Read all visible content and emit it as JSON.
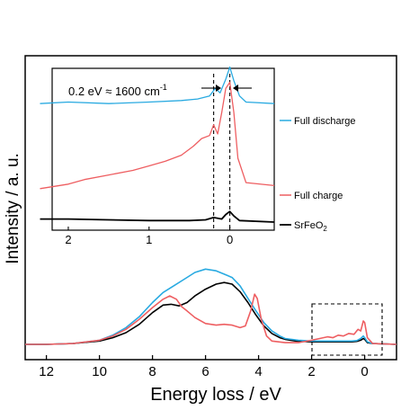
{
  "colors": {
    "full_discharge": "#29aae1",
    "full_charge": "#ee5e61",
    "srfeo2": "#000000",
    "frame": "#000000"
  },
  "chart_data": [
    {
      "type": "line",
      "panel": "main",
      "xlabel": "Energy loss / eV",
      "ylabel": "Intensity / a. u.",
      "xlim": [
        12.8,
        -1.2
      ],
      "x_reversed": true,
      "xticks": [
        12,
        10,
        8,
        6,
        4,
        2,
        0
      ],
      "xtick_labels": [
        "12",
        "10",
        "8",
        "6",
        "4",
        "2",
        "0"
      ],
      "y_ticks_shown": false,
      "grid": false,
      "series": [
        {
          "color_key": "srfeo2",
          "points": [
            [
              12.8,
              0.0
            ],
            [
              12,
              0.0
            ],
            [
              11,
              0.01
            ],
            [
              10,
              0.04
            ],
            [
              9.5,
              0.08
            ],
            [
              9,
              0.14
            ],
            [
              8.5,
              0.24
            ],
            [
              8,
              0.38
            ],
            [
              7.6,
              0.47
            ],
            [
              7.3,
              0.48
            ],
            [
              7,
              0.46
            ],
            [
              6.7,
              0.5
            ],
            [
              6.4,
              0.58
            ],
            [
              6.0,
              0.66
            ],
            [
              5.6,
              0.72
            ],
            [
              5.3,
              0.74
            ],
            [
              5.0,
              0.72
            ],
            [
              4.7,
              0.63
            ],
            [
              4.4,
              0.5
            ],
            [
              4.1,
              0.35
            ],
            [
              3.8,
              0.22
            ],
            [
              3.5,
              0.13
            ],
            [
              3.2,
              0.08
            ],
            [
              3.0,
              0.06
            ],
            [
              2.6,
              0.04
            ],
            [
              2,
              0.03
            ],
            [
              1.5,
              0.03
            ],
            [
              1,
              0.03
            ],
            [
              0.5,
              0.03
            ],
            [
              0.3,
              0.035
            ],
            [
              0.15,
              0.05
            ],
            [
              0.05,
              0.07
            ],
            [
              0,
              0.06
            ],
            [
              -0.1,
              0.02
            ],
            [
              -0.3,
              0.01
            ],
            [
              -1.2,
              0.0
            ]
          ]
        },
        {
          "color_key": "full_discharge",
          "points": [
            [
              12.8,
              0.0
            ],
            [
              12,
              0.0
            ],
            [
              11,
              0.01
            ],
            [
              10,
              0.05
            ],
            [
              9.5,
              0.11
            ],
            [
              9,
              0.2
            ],
            [
              8.5,
              0.33
            ],
            [
              8,
              0.5
            ],
            [
              7.6,
              0.62
            ],
            [
              7.2,
              0.7
            ],
            [
              6.8,
              0.78
            ],
            [
              6.4,
              0.86
            ],
            [
              6.0,
              0.9
            ],
            [
              5.6,
              0.88
            ],
            [
              5.3,
              0.84
            ],
            [
              5.0,
              0.8
            ],
            [
              4.7,
              0.7
            ],
            [
              4.4,
              0.55
            ],
            [
              4.1,
              0.4
            ],
            [
              3.8,
              0.26
            ],
            [
              3.5,
              0.16
            ],
            [
              3.2,
              0.1
            ],
            [
              3.0,
              0.07
            ],
            [
              2.5,
              0.05
            ],
            [
              2,
              0.04
            ],
            [
              1.5,
              0.04
            ],
            [
              1,
              0.04
            ],
            [
              0.5,
              0.04
            ],
            [
              0.3,
              0.045
            ],
            [
              0.15,
              0.07
            ],
            [
              0.05,
              0.1
            ],
            [
              0,
              0.08
            ],
            [
              -0.1,
              0.03
            ],
            [
              -0.3,
              0.01
            ],
            [
              -1.2,
              0.0
            ]
          ]
        },
        {
          "color_key": "full_charge",
          "points": [
            [
              12.8,
              0.0
            ],
            [
              12,
              0.0
            ],
            [
              11,
              0.01
            ],
            [
              10,
              0.05
            ],
            [
              9.5,
              0.1
            ],
            [
              9,
              0.18
            ],
            [
              8.5,
              0.3
            ],
            [
              8.0,
              0.44
            ],
            [
              7.6,
              0.54
            ],
            [
              7.35,
              0.58
            ],
            [
              7.1,
              0.54
            ],
            [
              6.9,
              0.45
            ],
            [
              6.7,
              0.4
            ],
            [
              6.4,
              0.32
            ],
            [
              6.0,
              0.25
            ],
            [
              5.6,
              0.23
            ],
            [
              5.3,
              0.24
            ],
            [
              5.0,
              0.23
            ],
            [
              4.7,
              0.2
            ],
            [
              4.5,
              0.22
            ],
            [
              4.3,
              0.4
            ],
            [
              4.15,
              0.6
            ],
            [
              4.05,
              0.55
            ],
            [
              3.9,
              0.3
            ],
            [
              3.7,
              0.1
            ],
            [
              3.5,
              0.04
            ],
            [
              3.0,
              0.02
            ],
            [
              2.5,
              0.02
            ],
            [
              2.0,
              0.05
            ],
            [
              1.7,
              0.07
            ],
            [
              1.4,
              0.09
            ],
            [
              1.2,
              0.08
            ],
            [
              1.0,
              0.11
            ],
            [
              0.8,
              0.1
            ],
            [
              0.6,
              0.13
            ],
            [
              0.4,
              0.12
            ],
            [
              0.25,
              0.18
            ],
            [
              0.15,
              0.16
            ],
            [
              0.05,
              0.28
            ],
            [
              0.0,
              0.26
            ],
            [
              -0.1,
              0.08
            ],
            [
              -0.3,
              0.01
            ],
            [
              -1.2,
              0.0
            ]
          ]
        }
      ]
    },
    {
      "type": "line",
      "panel": "inset",
      "xlim": [
        2.2,
        -0.55
      ],
      "x_reversed": true,
      "xticks": [
        2,
        1,
        0
      ],
      "xtick_labels": [
        "2",
        "1",
        "0"
      ],
      "annotation": "0.2 eV ≈ 1600 cm",
      "annotation_sup": "-1",
      "vlines_x": [
        0.2,
        0.0
      ],
      "legend_placement": "right",
      "series": [
        {
          "name": "Full discharge",
          "color_key": "full_discharge",
          "offset": 0.78,
          "points": [
            [
              2.35,
              0.0
            ],
            [
              2.0,
              0.01
            ],
            [
              1.5,
              0.0
            ],
            [
              1.0,
              0.01
            ],
            [
              0.6,
              0.02
            ],
            [
              0.4,
              0.03
            ],
            [
              0.25,
              0.05
            ],
            [
              0.18,
              0.1
            ],
            [
              0.12,
              0.07
            ],
            [
              0.05,
              0.16
            ],
            [
              0.0,
              0.24
            ],
            [
              -0.05,
              0.15
            ],
            [
              -0.12,
              0.05
            ],
            [
              -0.2,
              0.01
            ],
            [
              -0.55,
              0.0
            ]
          ]
        },
        {
          "name": "Full charge",
          "color_key": "full_charge",
          "offset": 0.22,
          "points": [
            [
              2.35,
              0.0
            ],
            [
              2.0,
              0.03
            ],
            [
              1.8,
              0.06
            ],
            [
              1.5,
              0.09
            ],
            [
              1.2,
              0.12
            ],
            [
              1.0,
              0.15
            ],
            [
              0.8,
              0.18
            ],
            [
              0.6,
              0.22
            ],
            [
              0.45,
              0.28
            ],
            [
              0.35,
              0.33
            ],
            [
              0.25,
              0.35
            ],
            [
              0.2,
              0.42
            ],
            [
              0.15,
              0.36
            ],
            [
              0.1,
              0.5
            ],
            [
              0.05,
              0.66
            ],
            [
              0.0,
              0.7
            ],
            [
              -0.05,
              0.5
            ],
            [
              -0.1,
              0.2
            ],
            [
              -0.2,
              0.04
            ],
            [
              -0.55,
              0.02
            ]
          ]
        },
        {
          "name": "SrFeO",
          "name_sub": "2",
          "color_key": "srfeo2",
          "offset": 0.0,
          "points": [
            [
              2.35,
              0.02
            ],
            [
              2.0,
              0.02
            ],
            [
              1.5,
              0.015
            ],
            [
              1.0,
              0.01
            ],
            [
              0.5,
              0.01
            ],
            [
              0.3,
              0.015
            ],
            [
              0.2,
              0.03
            ],
            [
              0.1,
              0.02
            ],
            [
              0.05,
              0.05
            ],
            [
              0.0,
              0.07
            ],
            [
              -0.05,
              0.04
            ],
            [
              -0.12,
              0.01
            ],
            [
              -0.55,
              0.0
            ]
          ]
        }
      ]
    }
  ]
}
